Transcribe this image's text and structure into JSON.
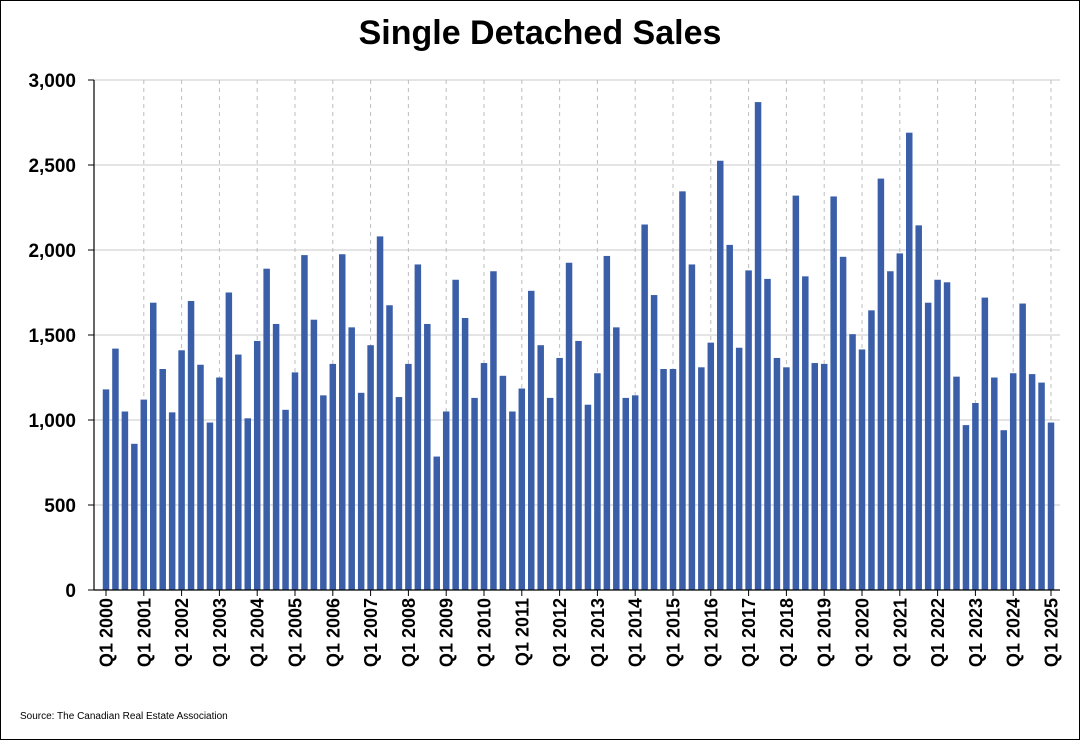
{
  "chart_data": {
    "type": "bar",
    "title": "Single Detached Sales",
    "source": "Source: The Canadian Real Estate Association",
    "ylim": [
      0,
      3000
    ],
    "yticks": [
      0,
      500,
      1000,
      1500,
      2000,
      2500,
      3000
    ],
    "ytick_labels": [
      "0",
      "500",
      "1,000",
      "1,500",
      "2,000",
      "2,500",
      "3,000"
    ],
    "xtick_labels": [
      "Q1 2000",
      "Q1 2001",
      "Q1 2002",
      "Q1 2003",
      "Q1 2004",
      "Q1 2005",
      "Q1 2006",
      "Q1 2007",
      "Q1 2008",
      "Q1 2009",
      "Q1 2010",
      "Q1 2011",
      "Q1 2012",
      "Q1 2013",
      "Q1 2014",
      "Q1 2015",
      "Q1 2016",
      "Q1 2017",
      "Q1 2018",
      "Q1 2019",
      "Q1 2020",
      "Q1 2021",
      "Q1 2022",
      "Q1 2023",
      "Q1 2024",
      "Q1 2025"
    ],
    "grid": true,
    "bar_color": "#3A5FA8",
    "categories": [
      "Q1 2000",
      "Q2 2000",
      "Q3 2000",
      "Q4 2000",
      "Q1 2001",
      "Q2 2001",
      "Q3 2001",
      "Q4 2001",
      "Q1 2002",
      "Q2 2002",
      "Q3 2002",
      "Q4 2002",
      "Q1 2003",
      "Q2 2003",
      "Q3 2003",
      "Q4 2003",
      "Q1 2004",
      "Q2 2004",
      "Q3 2004",
      "Q4 2004",
      "Q1 2005",
      "Q2 2005",
      "Q3 2005",
      "Q4 2005",
      "Q1 2006",
      "Q2 2006",
      "Q3 2006",
      "Q4 2006",
      "Q1 2007",
      "Q2 2007",
      "Q3 2007",
      "Q4 2007",
      "Q1 2008",
      "Q2 2008",
      "Q3 2008",
      "Q4 2008",
      "Q1 2009",
      "Q2 2009",
      "Q3 2009",
      "Q4 2009",
      "Q1 2010",
      "Q2 2010",
      "Q3 2010",
      "Q4 2010",
      "Q1 2011",
      "Q2 2011",
      "Q3 2011",
      "Q4 2011",
      "Q1 2012",
      "Q2 2012",
      "Q3 2012",
      "Q4 2012",
      "Q1 2013",
      "Q2 2013",
      "Q3 2013",
      "Q4 2013",
      "Q1 2014",
      "Q2 2014",
      "Q3 2014",
      "Q4 2014",
      "Q1 2015",
      "Q2 2015",
      "Q3 2015",
      "Q4 2015",
      "Q1 2016",
      "Q2 2016",
      "Q3 2016",
      "Q4 2016",
      "Q1 2017",
      "Q2 2017",
      "Q3 2017",
      "Q4 2017",
      "Q1 2018",
      "Q2 2018",
      "Q3 2018",
      "Q4 2018",
      "Q1 2019",
      "Q2 2019",
      "Q3 2019",
      "Q4 2019",
      "Q1 2020",
      "Q2 2020",
      "Q3 2020",
      "Q4 2020",
      "Q1 2021",
      "Q2 2021",
      "Q3 2021",
      "Q4 2021",
      "Q1 2022",
      "Q2 2022",
      "Q3 2022",
      "Q4 2022",
      "Q1 2023",
      "Q2 2023",
      "Q3 2023",
      "Q4 2023",
      "Q1 2024",
      "Q2 2024",
      "Q3 2024",
      "Q4 2024",
      "Q1 2025"
    ],
    "values": [
      1180,
      1420,
      1050,
      860,
      1120,
      1690,
      1300,
      1045,
      1410,
      1700,
      1325,
      985,
      1250,
      1750,
      1385,
      1010,
      1465,
      1890,
      1565,
      1060,
      1280,
      1970,
      1590,
      1145,
      1330,
      1975,
      1545,
      1160,
      1440,
      2080,
      1675,
      1135,
      1330,
      1915,
      1565,
      785,
      1050,
      1825,
      1600,
      1130,
      1335,
      1875,
      1260,
      1050,
      1185,
      1760,
      1440,
      1130,
      1365,
      1925,
      1465,
      1090,
      1275,
      1965,
      1545,
      1130,
      1145,
      2150,
      1735,
      1300,
      1300,
      2345,
      1915,
      1310,
      1455,
      2525,
      2030,
      1425,
      1880,
      2870,
      1830,
      1365,
      1310,
      2320,
      1845,
      1335,
      1330,
      2315,
      1960,
      1505,
      1415,
      1645,
      2420,
      1875,
      1980,
      2690,
      2145,
      1690,
      1825,
      1810,
      1255,
      970,
      1100,
      1720,
      1250,
      940,
      1275,
      1685,
      1270,
      1220,
      985
    ]
  }
}
